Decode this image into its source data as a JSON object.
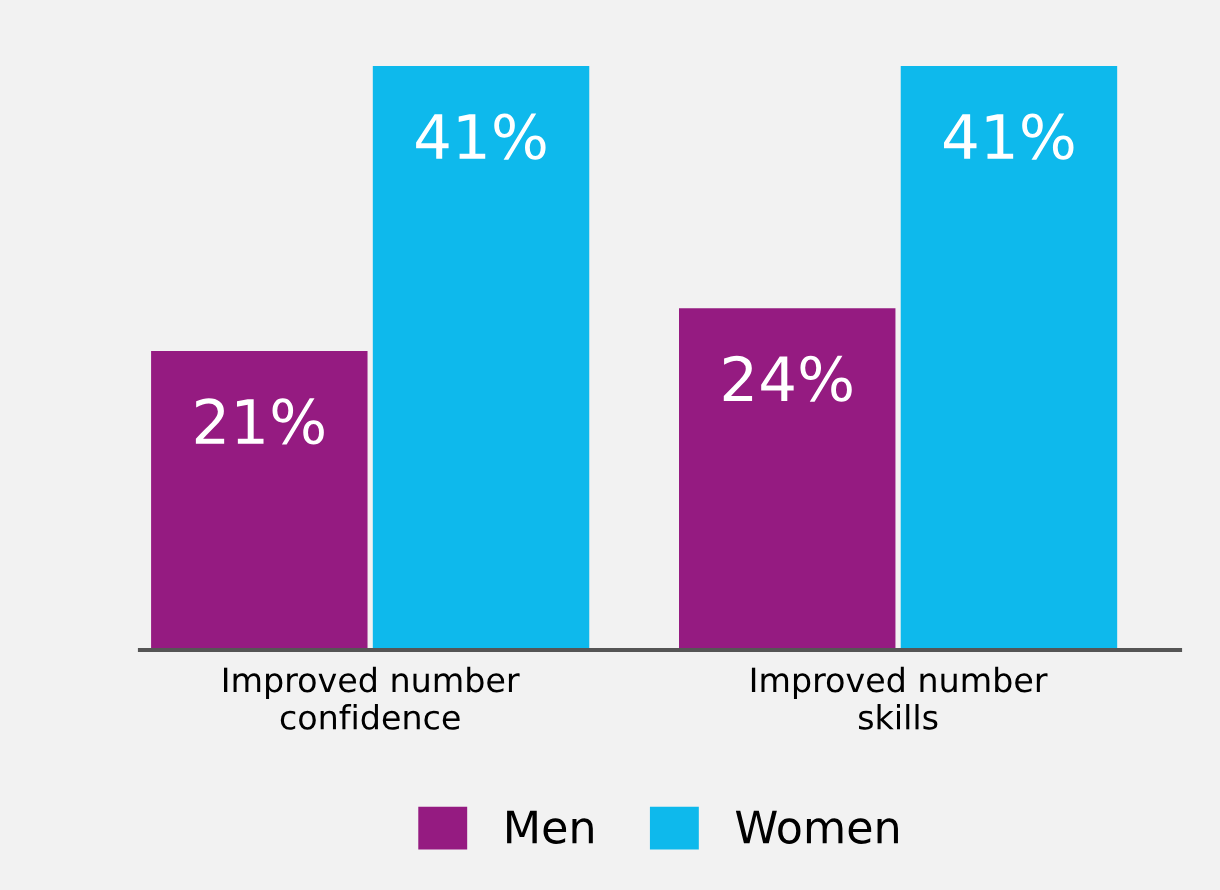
{
  "chart_data": {
    "type": "bar",
    "categories": [
      "Improved number\nconfidence",
      "Improved number\nskills"
    ],
    "series": [
      {
        "name": "Men",
        "color": "#951b81",
        "values": [
          21,
          24
        ],
        "value_labels": [
          "21%",
          "24%"
        ]
      },
      {
        "name": "Women",
        "color": "#0eb9ec",
        "values": [
          41,
          41
        ],
        "value_labels": [
          "41%",
          "41%"
        ]
      }
    ],
    "legend": "bottom",
    "grid": false
  }
}
